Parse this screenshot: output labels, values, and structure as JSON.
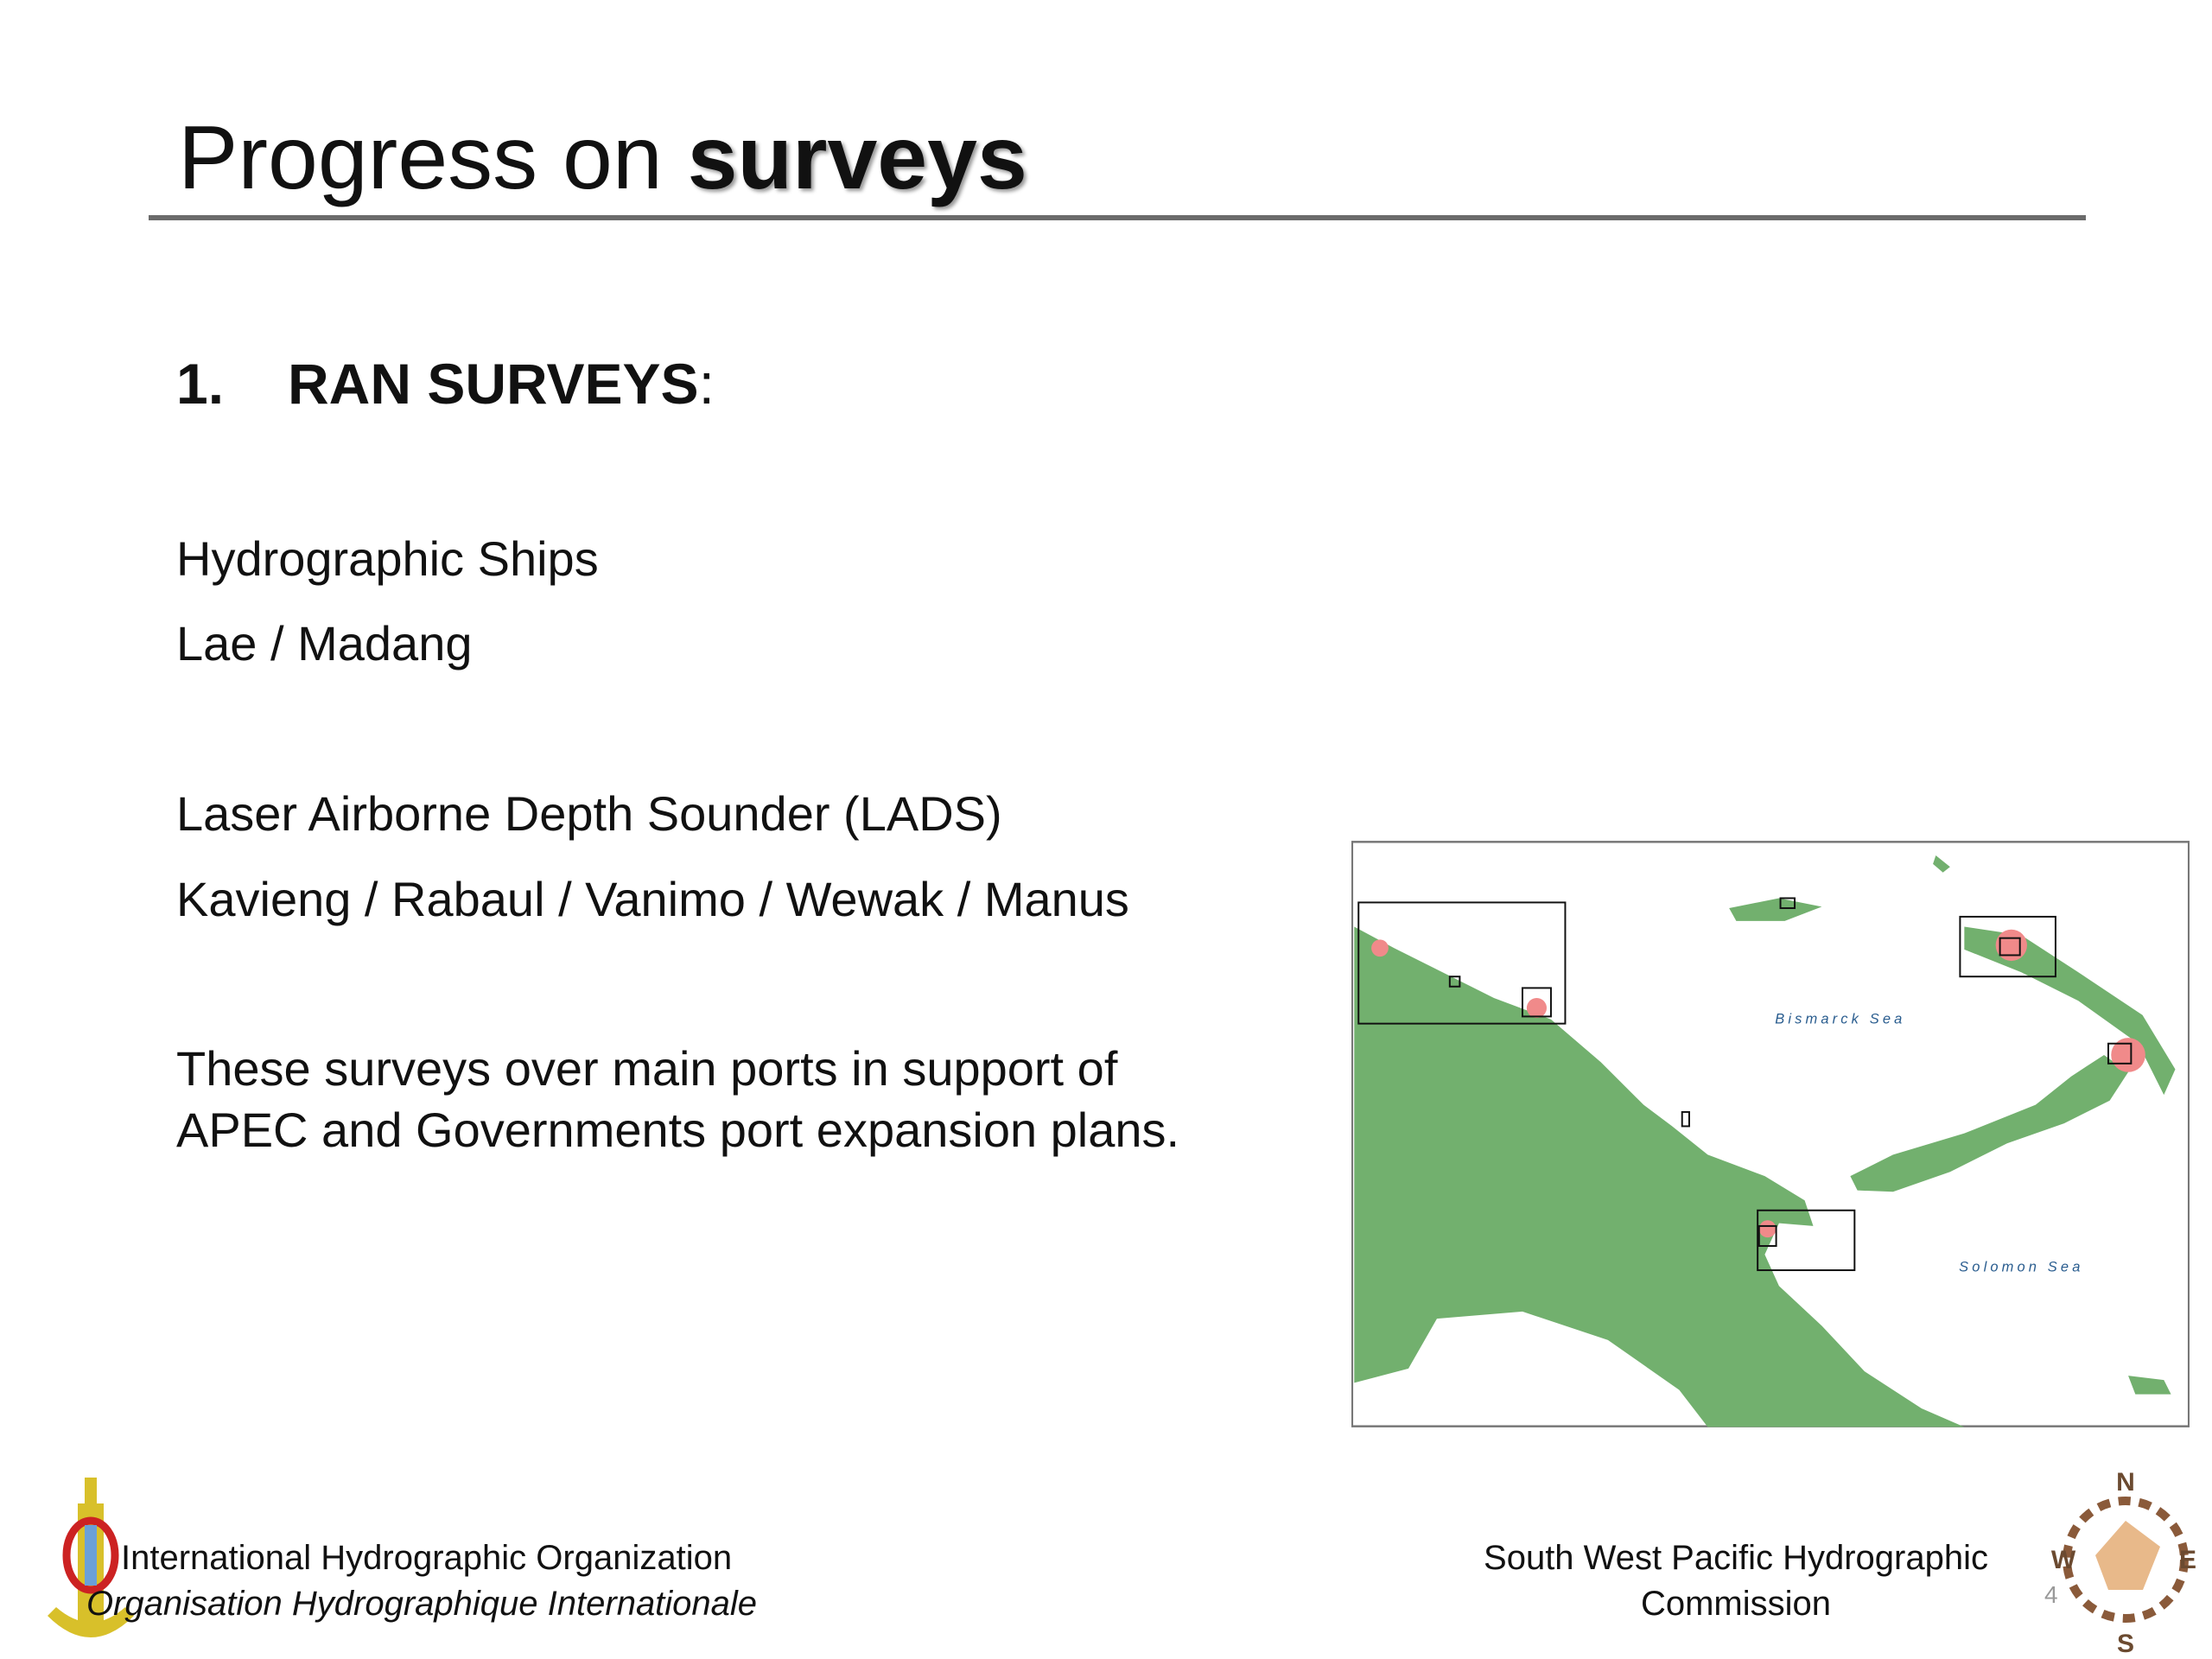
{
  "header": {
    "title_plain": "Progress on ",
    "title_bold": "surveys"
  },
  "section": {
    "number": "1.",
    "heading": "RAN SURVEYS",
    "colon": ":"
  },
  "body": {
    "ships": [
      "Hydrographic Ships",
      "Lae / Madang"
    ],
    "lads": [
      "Laser Airborne Depth Sounder (LADS)",
      "Kavieng / Rabaul / Vanimo / Wewak / Manus"
    ],
    "note": [
      "These surveys over main ports in support of",
      "APEC and Governments port expansion plans."
    ]
  },
  "map": {
    "labels": [
      "Bismarck Sea",
      "Solomon Sea"
    ]
  },
  "footer": {
    "left": [
      "International Hydrographic Organization",
      "Organisation Hydrographique Internationale"
    ],
    "right": [
      "South West Pacific Hydrographic",
      "Commission"
    ],
    "page_number": "4",
    "compass": [
      "N",
      "W",
      "E",
      "S"
    ]
  }
}
